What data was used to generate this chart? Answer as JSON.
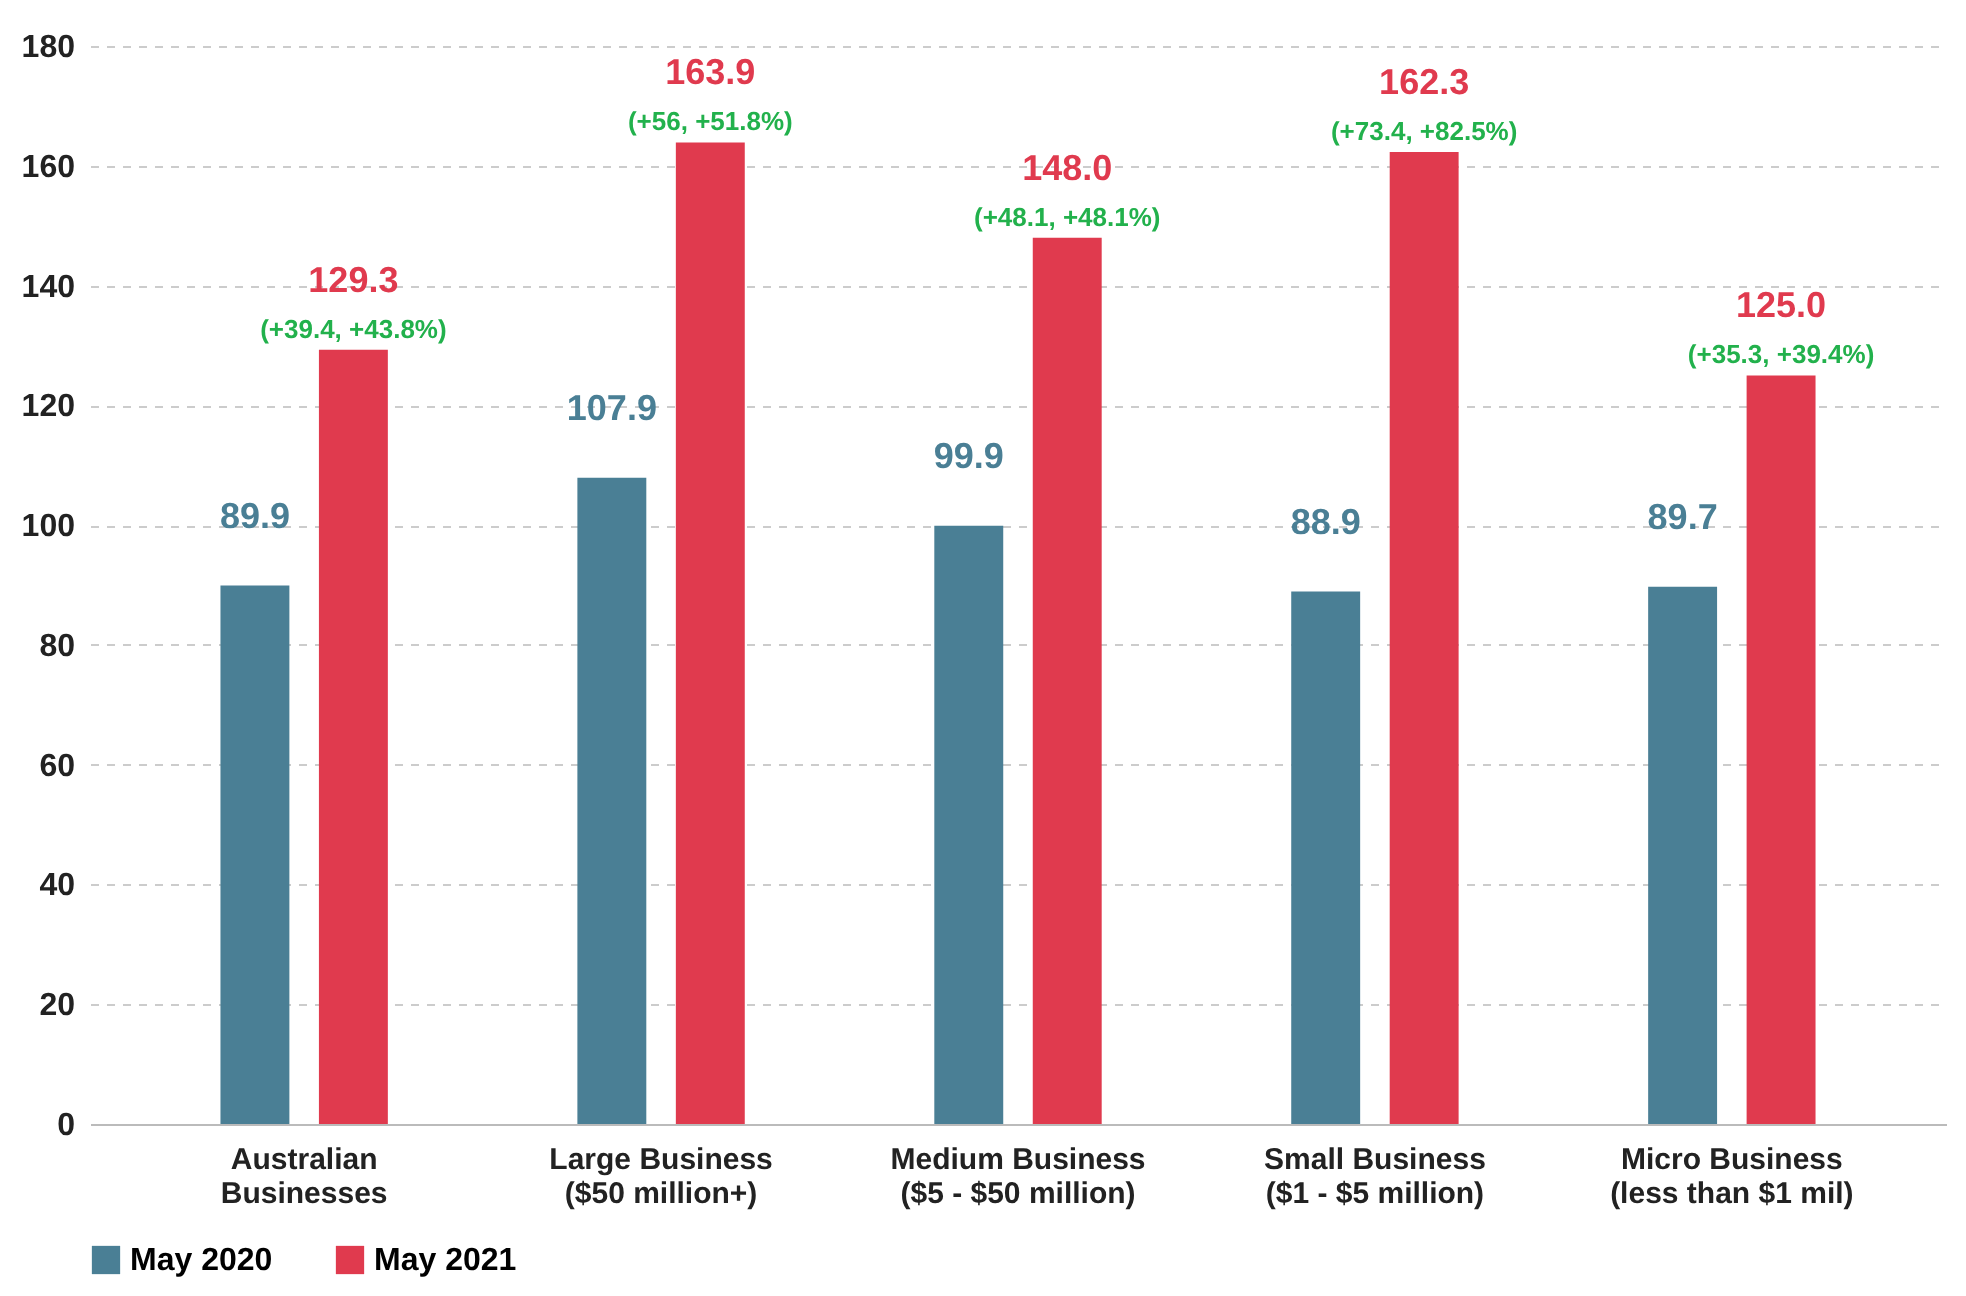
{
  "chart_data": {
    "type": "bar",
    "categories": [
      "Australian\nBusinesses",
      "Large Business\n($50 million+)",
      "Medium Business\n($5 - $50 million)",
      "Small Business\n($1 - $5 million)",
      "Micro Business\n(less than $1 mil)"
    ],
    "series": [
      {
        "name": "May 2020",
        "color": "#4a7f95",
        "values": [
          89.9,
          107.9,
          99.9,
          88.9,
          89.7
        ]
      },
      {
        "name": "May 2021",
        "color": "#e03a4e",
        "values": [
          129.3,
          163.9,
          148.0,
          162.3,
          125.0
        ]
      }
    ],
    "value_labels": [
      [
        "89.9",
        "107.9",
        "99.9",
        "88.9",
        "89.7"
      ],
      [
        "129.3",
        "163.9",
        "148.0",
        "162.3",
        "125.0"
      ]
    ],
    "annotations": [
      "(+39.4, +43.8%)",
      "(+56, +51.8%)",
      "(+48.1, +48.1%)",
      "(+73.4, +82.5%)",
      "(+35.3, +39.4%)"
    ],
    "ylim": [
      0,
      180
    ],
    "yticks": [
      0,
      20,
      40,
      60,
      80,
      100,
      120,
      140,
      160,
      180
    ],
    "grid": "y",
    "legend": "bottom"
  }
}
